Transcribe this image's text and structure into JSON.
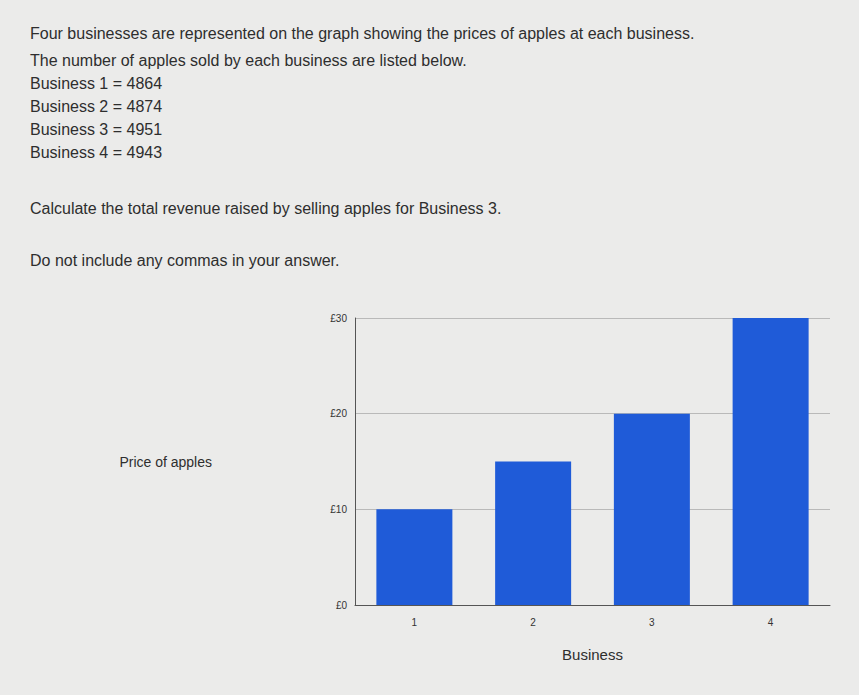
{
  "question": {
    "intro": [
      "Four businesses are represented on the graph showing the prices of apples at each business.",
      "The number of apples sold by each business are listed below."
    ],
    "sales_lines": [
      "Business 1 = 4864",
      "Business 2 = 4874",
      "Business 3 = 4951",
      "Business 4 = 4943"
    ],
    "task": "Calculate the total revenue raised by selling apples for Business 3.",
    "instruction": "Do not include any commas in your answer."
  },
  "chart_data": {
    "type": "bar",
    "x_label": "Business",
    "y_label": "Price of apples",
    "categories": [
      "1",
      "2",
      "3",
      "4"
    ],
    "values": [
      10,
      15,
      20,
      30
    ],
    "color": "#1f5bd8",
    "ylim": [
      0,
      30
    ],
    "yticks": [
      {
        "value": 0,
        "label": "£0"
      },
      {
        "value": 10,
        "label": "£10"
      },
      {
        "value": 20,
        "label": "£20"
      },
      {
        "value": 30,
        "label": "£30"
      }
    ],
    "grid": true
  }
}
